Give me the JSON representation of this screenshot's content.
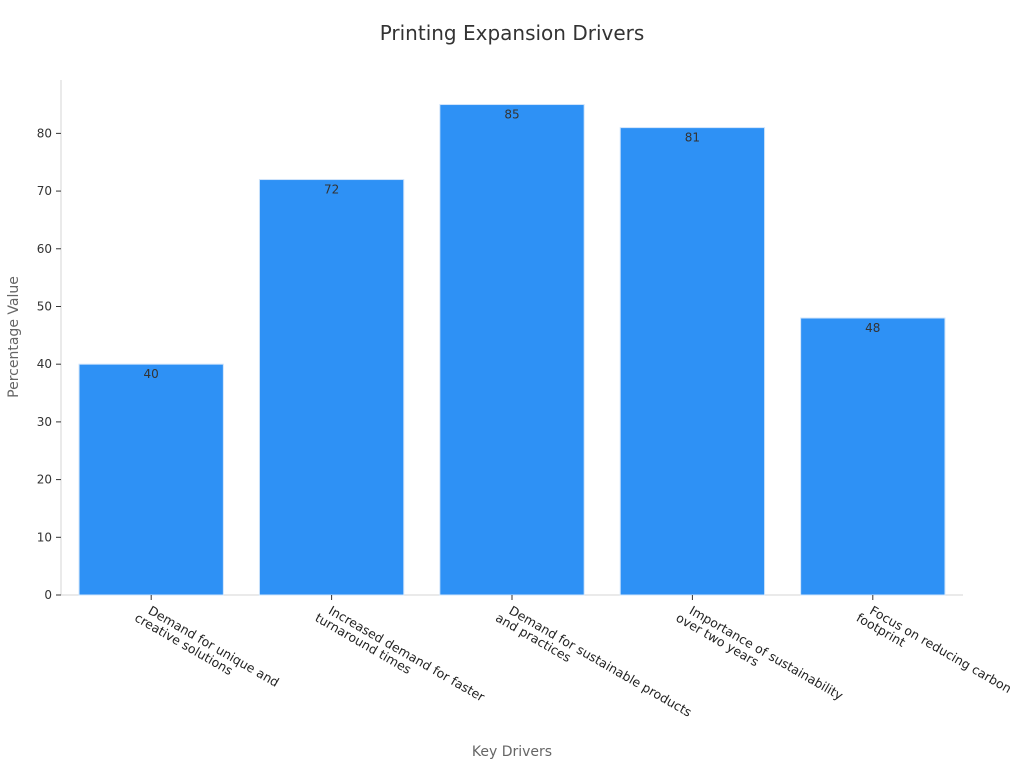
{
  "chart_data": {
    "type": "bar",
    "title": "Printing Expansion Drivers",
    "xlabel": "Key Drivers",
    "ylabel": "Percentage Value",
    "categories": [
      [
        "Demand for unique and",
        "creative solutions"
      ],
      [
        "Increased demand for faster",
        "turnaround times"
      ],
      [
        "Demand for sustainable products",
        "and practices"
      ],
      [
        "Importance of sustainability",
        "over two years"
      ],
      [
        "Focus on reducing carbon",
        "footprint"
      ]
    ],
    "values": [
      40,
      72,
      85,
      81,
      48
    ],
    "ylim": [
      0,
      89.25
    ],
    "yticks": [
      0,
      10,
      20,
      30,
      40,
      50,
      60,
      70,
      80
    ],
    "grid": false,
    "legend": "none",
    "colors": {
      "bar": "#2e91f5",
      "bar_edge": "#cfe4fb"
    }
  }
}
